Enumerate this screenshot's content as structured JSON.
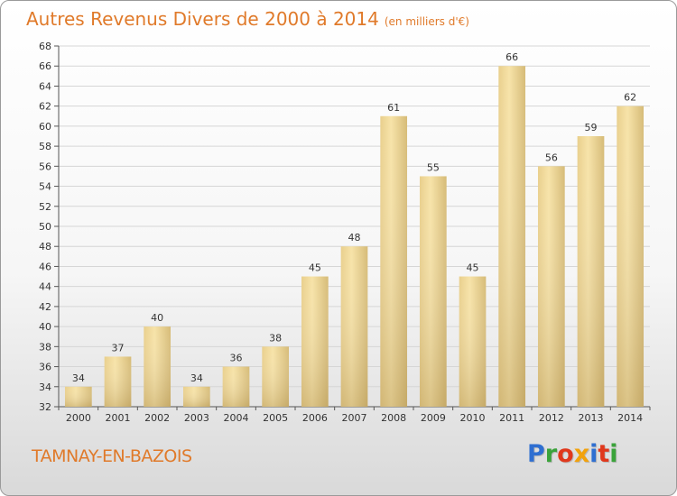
{
  "title": "Autres Revenus Divers de 2000 à 2014",
  "unit": "(en milliers d'€)",
  "commune": "TAMNAY-EN-BAZOIS",
  "logo": {
    "text": "Proxiti",
    "colors": [
      "#2f6fd1",
      "#3aa33a",
      "#e0381c",
      "#f2a20c",
      "#2f6fd1",
      "#e0381c",
      "#3aa33a"
    ]
  },
  "colors": {
    "title": "#e07a2a",
    "bar_light": "#f7e2a6",
    "bar_dark": "#c8ac6a"
  },
  "chart_data": {
    "type": "bar",
    "categories": [
      "2000",
      "2001",
      "2002",
      "2003",
      "2004",
      "2005",
      "2006",
      "2007",
      "2008",
      "2009",
      "2010",
      "2011",
      "2012",
      "2013",
      "2014"
    ],
    "values": [
      34,
      37,
      40,
      34,
      36,
      38,
      45,
      48,
      61,
      55,
      45,
      66,
      56,
      59,
      62
    ],
    "ylim": [
      32,
      68
    ],
    "ytick_step": 2,
    "grid": true,
    "xlabel": "",
    "ylabel": ""
  }
}
